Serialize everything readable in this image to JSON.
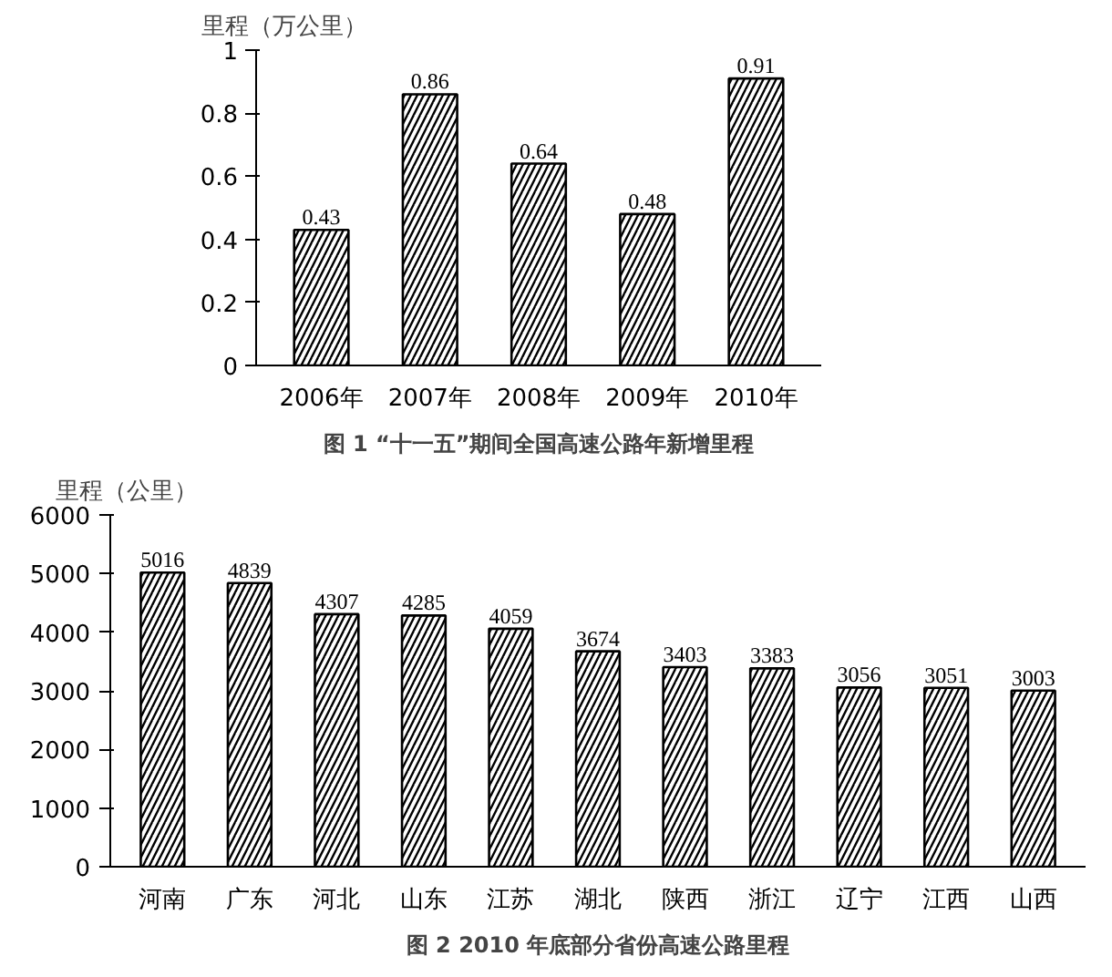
{
  "chart_data": [
    {
      "type": "bar",
      "title": "图 1 “十一五”期间全国高速公路年新增里程",
      "ylabel": "里程（万公里）",
      "categories": [
        "2006年",
        "2007年",
        "2008年",
        "2009年",
        "2010年"
      ],
      "values": [
        0.43,
        0.86,
        0.64,
        0.48,
        0.91
      ],
      "color": "#000000",
      "ylim": [
        0,
        1
      ],
      "yticks": [
        0,
        0.2,
        0.4,
        0.6,
        0.8,
        1
      ],
      "data_labels": true,
      "grid": false
    },
    {
      "type": "bar",
      "title": "图 2 2010 年底部分省份高速公路里程",
      "ylabel": "里程（公里）",
      "categories": [
        "河南",
        "广东",
        "河北",
        "山东",
        "江苏",
        "湖北",
        "陕西",
        "浙江",
        "辽宁",
        "江西",
        "山西"
      ],
      "values": [
        5016,
        4839,
        4307,
        4285,
        4059,
        3674,
        3403,
        3383,
        3056,
        3051,
        3003
      ],
      "color": "#000000",
      "ylim": [
        0,
        6000
      ],
      "yticks": [
        0,
        1000,
        2000,
        3000,
        4000,
        5000,
        6000
      ],
      "data_labels": true,
      "grid": false
    }
  ]
}
